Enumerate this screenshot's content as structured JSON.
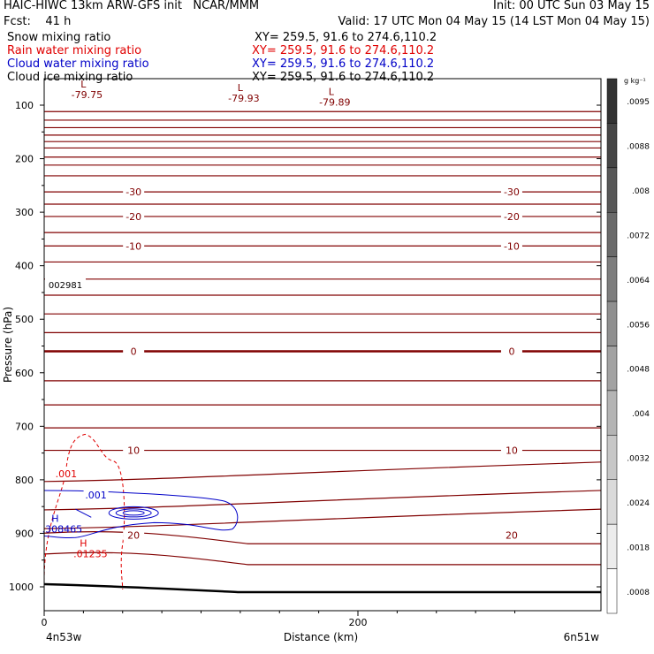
{
  "header": {
    "line1_left": "HAIC-HIWC 13km ARW-GFS init   NCAR/MMM",
    "line1_right": "Init: 00 UTC Sun 03 May 15",
    "line2_left": "Fcst:    41 h",
    "line2_right": "Valid: 17 UTC Mon 04 May 15 (14 LST Mon 04 May 15)",
    "fields": [
      {
        "name": "Snow mixing ratio",
        "xy": "XY= 259.5, 91.6 to 274.6,110.2",
        "color": "#000000"
      },
      {
        "name": "Rain water mixing ratio",
        "xy": "XY= 259.5, 91.6 to 274.6,110.2",
        "color": "#e00000"
      },
      {
        "name": "Cloud water mixing ratio",
        "xy": "XY= 259.5, 91.6 to 274.6,110.2",
        "color": "#0000c8"
      },
      {
        "name": "Cloud ice mixing ratio",
        "xy": "XY= 259.5, 91.6 to 274.6,110.2",
        "color": "#000000"
      }
    ]
  },
  "chart_data": {
    "type": "contour-cross-section",
    "ylabel": "Pressure (hPa)",
    "xlabel": "Distance (km)",
    "x_ticks": [
      0,
      200
    ],
    "x_range": [
      0,
      300
    ],
    "y_ticks": [
      100,
      200,
      300,
      400,
      500,
      600,
      700,
      800,
      900,
      1000
    ],
    "y_range": [
      50,
      1050
    ],
    "y_axis": "pressure (top=low)",
    "start_label": "4n53w",
    "end_label": "6n51w",
    "temperature_isotherm_pressures": [
      112,
      128,
      142,
      156,
      168,
      180,
      197,
      212,
      232,
      262,
      285,
      308,
      338,
      363,
      393,
      425,
      455,
      490,
      525,
      560,
      615,
      660,
      703,
      745,
      790,
      843,
      878,
      903,
      942
    ],
    "temperature_labels": [
      {
        "text": "-30",
        "x_km": 57,
        "p": 262
      },
      {
        "text": "-30",
        "x_km": 298,
        "p": 262
      },
      {
        "text": "-20",
        "x_km": 57,
        "p": 308
      },
      {
        "text": "-20",
        "x_km": 298,
        "p": 308
      },
      {
        "text": "-10",
        "x_km": 57,
        "p": 363
      },
      {
        "text": "-10",
        "x_km": 298,
        "p": 363
      },
      {
        "text": "0",
        "x_km": 57,
        "p": 560
      },
      {
        "text": "0",
        "x_km": 298,
        "p": 560
      },
      {
        "text": "10",
        "x_km": 57,
        "p": 745
      },
      {
        "text": "10",
        "x_km": 298,
        "p": 745
      },
      {
        "text": "20",
        "x_km": 57,
        "p": 903
      },
      {
        "text": "20",
        "x_km": 298,
        "p": 903
      }
    ],
    "lows": [
      {
        "label": "L",
        "value": "-79.75",
        "x_km": 25,
        "p": 60
      },
      {
        "label": "L",
        "value": "-79.93",
        "x_km": 125,
        "p": 67
      },
      {
        "label": "L",
        "value": "-79.89",
        "x_km": 183,
        "p": 74
      }
    ],
    "highs": [
      {
        "label": "H",
        "value": ".308465",
        "x_km": 7,
        "p": 872,
        "color": "#0000c8"
      },
      {
        "label": "H",
        "value": ".01235",
        "x_km": 25,
        "p": 918,
        "color": "#e00000"
      }
    ],
    "rain_contour_label": ".001",
    "cloud_contour_label": ".001",
    "surface_label": "002981",
    "colorbar_unit": "g kg⁻¹",
    "colorbar_ticks": [
      ".0095",
      ".0088",
      ".008",
      ".0072",
      ".0064",
      ".0056",
      ".0048",
      ".004",
      ".0032",
      ".0024",
      ".0018",
      ".0008"
    ],
    "colors": {
      "isotherm": "#800000",
      "rain": "#e00000",
      "cloud": "#0000c8",
      "ground": "#000000"
    }
  }
}
